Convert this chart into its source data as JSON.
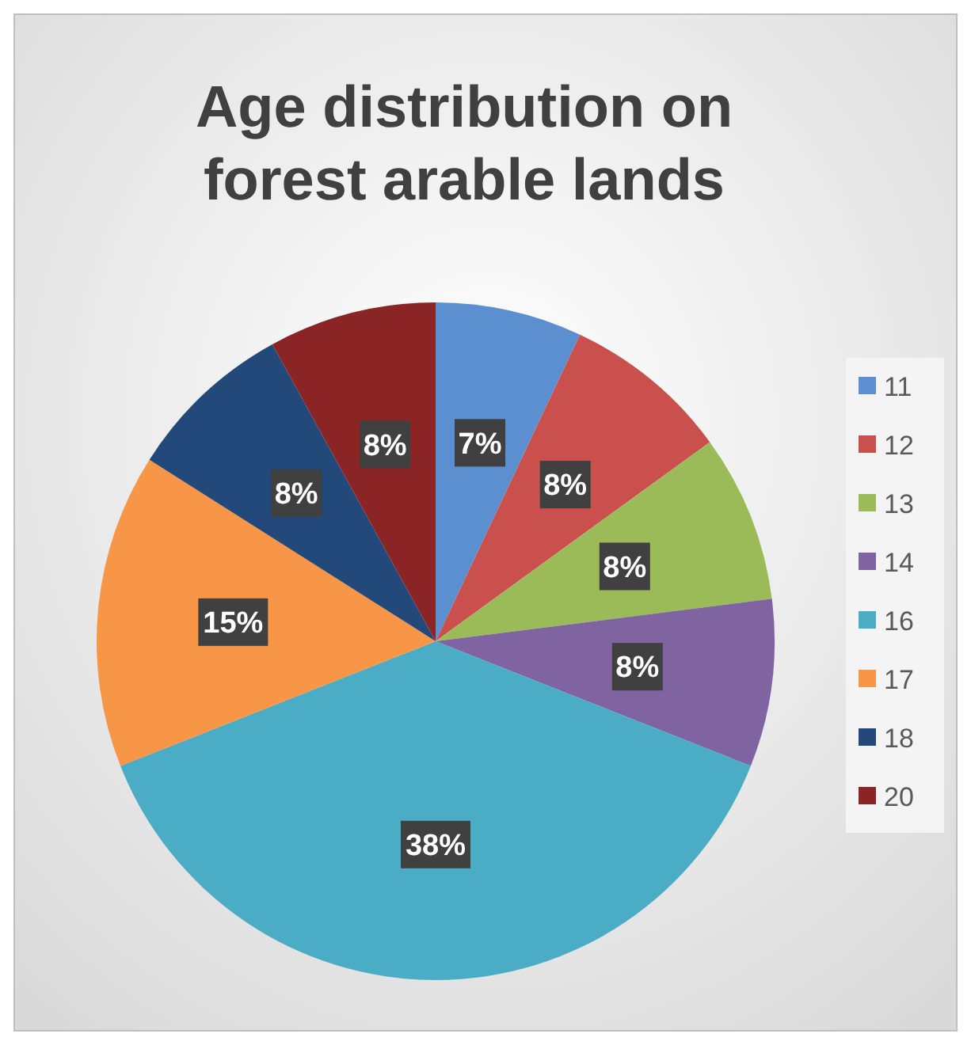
{
  "chart_data": {
    "type": "pie",
    "title": "Age distribution on forest arable lands",
    "categories": [
      "11",
      "12",
      "13",
      "14",
      "16",
      "17",
      "18",
      "20"
    ],
    "values": [
      7,
      8,
      8,
      8,
      38,
      15,
      8,
      8
    ],
    "colors": [
      "#5b8fd0",
      "#c9504d",
      "#9bbb59",
      "#8064a2",
      "#4bacc6",
      "#f79646",
      "#23497a",
      "#8b2525"
    ],
    "value_labels": [
      "7%",
      "8%",
      "8%",
      "8%",
      "38%",
      "15%",
      "8%",
      "8%"
    ],
    "legend": "right"
  }
}
